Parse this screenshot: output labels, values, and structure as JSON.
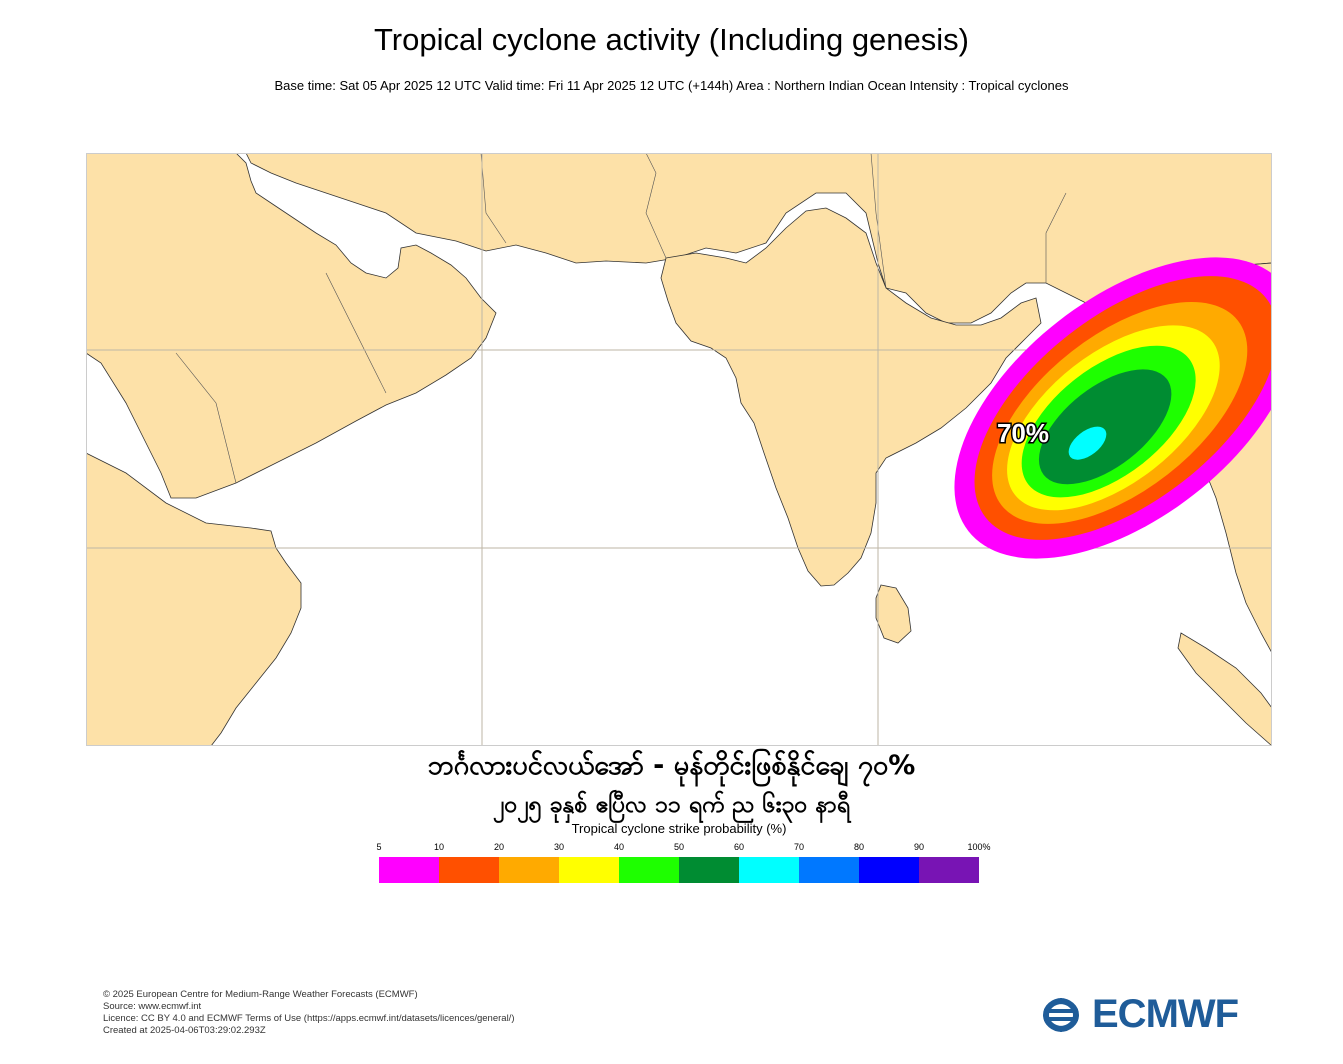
{
  "header": {
    "title": "Tropical cyclone activity (Including genesis)",
    "subtitle": "Base time: Sat 05 Apr 2025 12 UTC Valid time: Fri 11 Apr 2025 12 UTC (+144h) Area : Northern Indian Ocean Intensity : Tropical cyclones"
  },
  "map": {
    "land_color": "#fde1a8",
    "sea_color": "#ffffff",
    "peak_label": "70%",
    "peak_probability": 70
  },
  "annotation": {
    "line1": "ဘင်္ဂလားပင်လယ်အော် - မုန်တိုင်းဖြစ်နိုင်ချေ ၇၀%",
    "line2": "၂၀၂၅ ခုနှစ် ဧပြီလ ၁၁ ရက် ည ၆း၃၀ နာရီ"
  },
  "legend": {
    "title": "Tropical cyclone strike probability (%)",
    "ticks": [
      "5",
      "10",
      "20",
      "30",
      "40",
      "50",
      "60",
      "70",
      "80",
      "90",
      "100%"
    ],
    "colors": [
      "#ff00ff",
      "#ff5000",
      "#ffaa00",
      "#ffff00",
      "#1eff00",
      "#008c32",
      "#00ffff",
      "#0078ff",
      "#0000ff",
      "#7814b4"
    ]
  },
  "footer": {
    "credits": [
      "© 2025 European Centre for Medium-Range Weather Forecasts (ECMWF)",
      "Source: www.ecmwf.int",
      "Licence: CC BY 4.0 and ECMWF Terms of Use (https://apps.ecmwf.int/datasets/licences/general/)",
      "Created at 2025-04-06T03:29:02.293Z"
    ],
    "logo_text": "ECMWF",
    "logo_color": "#1f5c99"
  }
}
